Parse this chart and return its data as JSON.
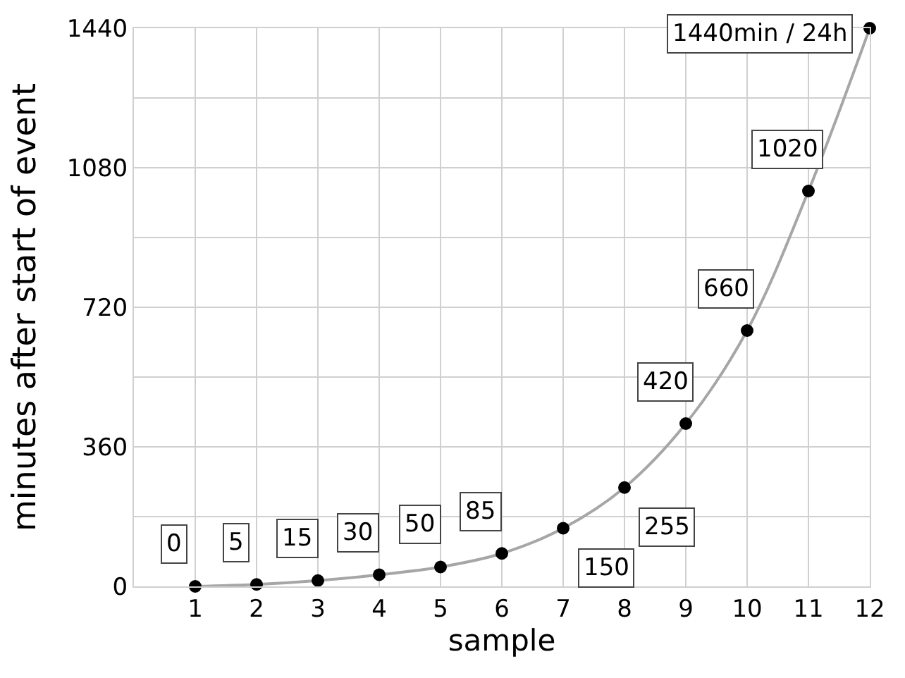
{
  "chart_data": {
    "type": "line",
    "xlabel": "sample",
    "ylabel": "minutes after start of event",
    "x": [
      1,
      2,
      3,
      4,
      5,
      6,
      7,
      8,
      9,
      10,
      11,
      12
    ],
    "series": [
      {
        "color": "#000000",
        "values": [
          0,
          5,
          15,
          30,
          50,
          85,
          150,
          255,
          420,
          660,
          1020,
          1440
        ],
        "value_labels": [
          "0",
          "5",
          "15",
          "30",
          "50",
          "85",
          "150",
          "255",
          "420",
          "660",
          "1020",
          "1440min / 24h"
        ]
      }
    ],
    "xlim": [
      0,
      12
    ],
    "xticks": [
      1,
      2,
      3,
      4,
      5,
      6,
      7,
      8,
      9,
      10,
      11,
      12
    ],
    "ylim": [
      0,
      1440
    ],
    "yticks": [
      0,
      {
        "value": 180,
        "label": null
      },
      360,
      {
        "value": 540,
        "label": null
      },
      720,
      {
        "value": 900,
        "label": null
      },
      1080,
      {
        "value": 1260,
        "label": null
      },
      1440
    ],
    "grid": true,
    "marker": "circle",
    "line_style": "solid",
    "legend": false
  }
}
